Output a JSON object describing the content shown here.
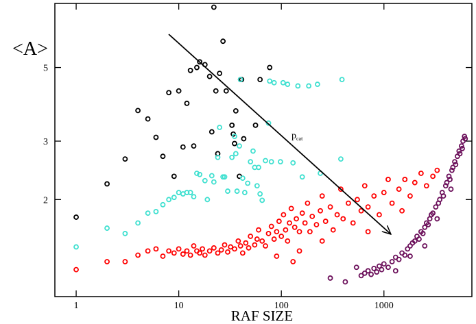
{
  "chart_data": {
    "type": "scatter",
    "xlabel": "RAF SIZE",
    "ylabel": "<A>",
    "annotation": {
      "text": "p",
      "subscript": "cat"
    },
    "xscale": "log",
    "yscale": "log",
    "xlim": [
      0.62,
      7200
    ],
    "ylim": [
      1.02,
      7.8
    ],
    "xticks": [
      1,
      10,
      100,
      1000
    ],
    "yticks": [
      2,
      3,
      5
    ],
    "series": [
      {
        "color": "#000000",
        "points": [
          [
            1,
            1.77
          ],
          [
            2,
            2.23
          ],
          [
            3,
            2.65
          ],
          [
            4,
            3.71
          ],
          [
            5,
            3.5
          ],
          [
            6,
            3.08
          ],
          [
            7,
            2.7
          ],
          [
            8,
            4.2
          ],
          [
            9,
            2.35
          ],
          [
            10,
            4.25
          ],
          [
            11,
            2.88
          ],
          [
            12,
            3.9
          ],
          [
            13,
            4.9
          ],
          [
            14,
            2.9
          ],
          [
            15,
            5.0
          ],
          [
            16,
            5.2
          ],
          [
            18,
            5.1
          ],
          [
            20,
            4.7
          ],
          [
            21,
            3.2
          ],
          [
            22,
            7.6
          ],
          [
            23,
            4.25
          ],
          [
            24,
            2.75
          ],
          [
            25,
            4.8
          ],
          [
            27,
            6.0
          ],
          [
            29,
            4.25
          ],
          [
            33,
            3.35
          ],
          [
            34,
            3.15
          ],
          [
            35,
            2.95
          ],
          [
            36,
            3.7
          ],
          [
            39,
            2.35
          ],
          [
            40,
            4.6
          ],
          [
            41,
            4.6
          ],
          [
            43,
            3.05
          ],
          [
            56,
            3.35
          ],
          [
            62,
            4.6
          ],
          [
            77,
            5.0
          ]
        ]
      },
      {
        "color": "#40e0d0",
        "points": [
          [
            1,
            1.44
          ],
          [
            2,
            1.64
          ],
          [
            3,
            1.58
          ],
          [
            4,
            1.7
          ],
          [
            5,
            1.82
          ],
          [
            6,
            1.84
          ],
          [
            7,
            1.93
          ],
          [
            8,
            2.0
          ],
          [
            9,
            2.03
          ],
          [
            10,
            2.1
          ],
          [
            11,
            2.08
          ],
          [
            12,
            2.1
          ],
          [
            13,
            2.1
          ],
          [
            14,
            2.04
          ],
          [
            15,
            2.4
          ],
          [
            16,
            2.38
          ],
          [
            18,
            2.28
          ],
          [
            19,
            2.0
          ],
          [
            21,
            2.36
          ],
          [
            22,
            2.26
          ],
          [
            24,
            2.68
          ],
          [
            25,
            3.3
          ],
          [
            27,
            2.34
          ],
          [
            28,
            2.34
          ],
          [
            30,
            2.12
          ],
          [
            33,
            2.68
          ],
          [
            35,
            3.1
          ],
          [
            36,
            2.75
          ],
          [
            37,
            2.12
          ],
          [
            39,
            2.9
          ],
          [
            40,
            4.6
          ],
          [
            42,
            2.32
          ],
          [
            44,
            2.1
          ],
          [
            47,
            2.24
          ],
          [
            50,
            2.6
          ],
          [
            53,
            2.8
          ],
          [
            55,
            2.5
          ],
          [
            58,
            2.2
          ],
          [
            60,
            2.5
          ],
          [
            62,
            2.08
          ],
          [
            65,
            1.99
          ],
          [
            70,
            2.62
          ],
          [
            75,
            3.4
          ],
          [
            77,
            4.55
          ],
          [
            80,
            2.6
          ],
          [
            85,
            4.5
          ],
          [
            98,
            2.6
          ],
          [
            104,
            4.5
          ],
          [
            115,
            4.45
          ],
          [
            130,
            2.58
          ],
          [
            145,
            4.4
          ],
          [
            160,
            2.34
          ],
          [
            185,
            4.4
          ],
          [
            225,
            4.45
          ],
          [
            240,
            2.4
          ],
          [
            380,
            2.65
          ],
          [
            390,
            4.6
          ]
        ]
      },
      {
        "color": "#ff0000",
        "points": [
          [
            1,
            1.23
          ],
          [
            2,
            1.3
          ],
          [
            3,
            1.3
          ],
          [
            4,
            1.36
          ],
          [
            5,
            1.4
          ],
          [
            6,
            1.42
          ],
          [
            7,
            1.35
          ],
          [
            8,
            1.4
          ],
          [
            9,
            1.38
          ],
          [
            10,
            1.42
          ],
          [
            11,
            1.37
          ],
          [
            12,
            1.4
          ],
          [
            13,
            1.36
          ],
          [
            14,
            1.45
          ],
          [
            15,
            1.4
          ],
          [
            16,
            1.38
          ],
          [
            17,
            1.42
          ],
          [
            18,
            1.36
          ],
          [
            20,
            1.4
          ],
          [
            22,
            1.43
          ],
          [
            24,
            1.38
          ],
          [
            26,
            1.41
          ],
          [
            28,
            1.46
          ],
          [
            30,
            1.39
          ],
          [
            32,
            1.44
          ],
          [
            35,
            1.42
          ],
          [
            38,
            1.5
          ],
          [
            40,
            1.45
          ],
          [
            42,
            1.38
          ],
          [
            45,
            1.48
          ],
          [
            48,
            1.43
          ],
          [
            50,
            1.55
          ],
          [
            55,
            1.46
          ],
          [
            58,
            1.52
          ],
          [
            60,
            1.62
          ],
          [
            65,
            1.5
          ],
          [
            70,
            1.45
          ],
          [
            75,
            1.58
          ],
          [
            80,
            1.66
          ],
          [
            85,
            1.52
          ],
          [
            90,
            1.6
          ],
          [
            95,
            1.72
          ],
          [
            100,
            1.55
          ],
          [
            105,
            1.8
          ],
          [
            110,
            1.62
          ],
          [
            115,
            1.5
          ],
          [
            120,
            1.7
          ],
          [
            125,
            1.88
          ],
          [
            130,
            1.3
          ],
          [
            135,
            1.65
          ],
          [
            140,
            1.75
          ],
          [
            150,
            1.6
          ],
          [
            160,
            1.82
          ],
          [
            170,
            1.7
          ],
          [
            180,
            1.95
          ],
          [
            190,
            1.6
          ],
          [
            200,
            1.78
          ],
          [
            220,
            1.68
          ],
          [
            240,
            1.85
          ],
          [
            250,
            2.05
          ],
          [
            270,
            1.72
          ],
          [
            300,
            1.9
          ],
          [
            320,
            1.62
          ],
          [
            350,
            1.8
          ],
          [
            380,
            2.15
          ],
          [
            400,
            1.75
          ],
          [
            450,
            1.95
          ],
          [
            500,
            1.7
          ],
          [
            550,
            2.0
          ],
          [
            600,
            1.85
          ],
          [
            650,
            2.2
          ],
          [
            700,
            1.9
          ],
          [
            800,
            2.05
          ],
          [
            900,
            1.8
          ],
          [
            1000,
            2.1
          ],
          [
            1100,
            2.3
          ],
          [
            1200,
            1.95
          ],
          [
            1400,
            2.15
          ],
          [
            1600,
            2.3
          ],
          [
            1800,
            2.05
          ],
          [
            2000,
            2.25
          ],
          [
            2300,
            2.4
          ],
          [
            2600,
            2.2
          ],
          [
            3000,
            2.35
          ],
          [
            3300,
            2.45
          ],
          [
            1500,
            1.85
          ],
          [
            700,
            1.6
          ],
          [
            250,
            1.5
          ],
          [
            150,
            1.4
          ],
          [
            90,
            1.35
          ]
        ]
      },
      {
        "color": "#6b0f5a",
        "points": [
          [
            300,
            1.16
          ],
          [
            420,
            1.13
          ],
          [
            540,
            1.25
          ],
          [
            600,
            1.18
          ],
          [
            650,
            1.2
          ],
          [
            700,
            1.22
          ],
          [
            750,
            1.19
          ],
          [
            800,
            1.24
          ],
          [
            850,
            1.21
          ],
          [
            900,
            1.26
          ],
          [
            950,
            1.23
          ],
          [
            1000,
            1.28
          ],
          [
            1100,
            1.25
          ],
          [
            1200,
            1.3
          ],
          [
            1300,
            1.34
          ],
          [
            1400,
            1.32
          ],
          [
            1500,
            1.38
          ],
          [
            1600,
            1.36
          ],
          [
            1700,
            1.42
          ],
          [
            1800,
            1.45
          ],
          [
            1900,
            1.48
          ],
          [
            2000,
            1.5
          ],
          [
            2100,
            1.55
          ],
          [
            2200,
            1.52
          ],
          [
            2300,
            1.6
          ],
          [
            2400,
            1.58
          ],
          [
            2500,
            1.65
          ],
          [
            2600,
            1.7
          ],
          [
            2700,
            1.68
          ],
          [
            2800,
            1.75
          ],
          [
            2900,
            1.8
          ],
          [
            3000,
            1.82
          ],
          [
            3200,
            1.9
          ],
          [
            3400,
            1.95
          ],
          [
            3500,
            2.0
          ],
          [
            3700,
            2.1
          ],
          [
            3800,
            2.05
          ],
          [
            4000,
            2.2
          ],
          [
            4100,
            2.25
          ],
          [
            4300,
            2.35
          ],
          [
            4400,
            2.3
          ],
          [
            4600,
            2.45
          ],
          [
            4700,
            2.5
          ],
          [
            4900,
            2.6
          ],
          [
            5000,
            2.55
          ],
          [
            5200,
            2.7
          ],
          [
            5400,
            2.8
          ],
          [
            5500,
            2.75
          ],
          [
            5700,
            2.9
          ],
          [
            5900,
            3.0
          ],
          [
            6100,
            3.1
          ],
          [
            6200,
            3.05
          ],
          [
            5800,
            2.85
          ],
          [
            4500,
            2.15
          ],
          [
            3300,
            1.75
          ],
          [
            2500,
            1.45
          ],
          [
            1800,
            1.35
          ],
          [
            1300,
            1.22
          ]
        ]
      }
    ]
  }
}
